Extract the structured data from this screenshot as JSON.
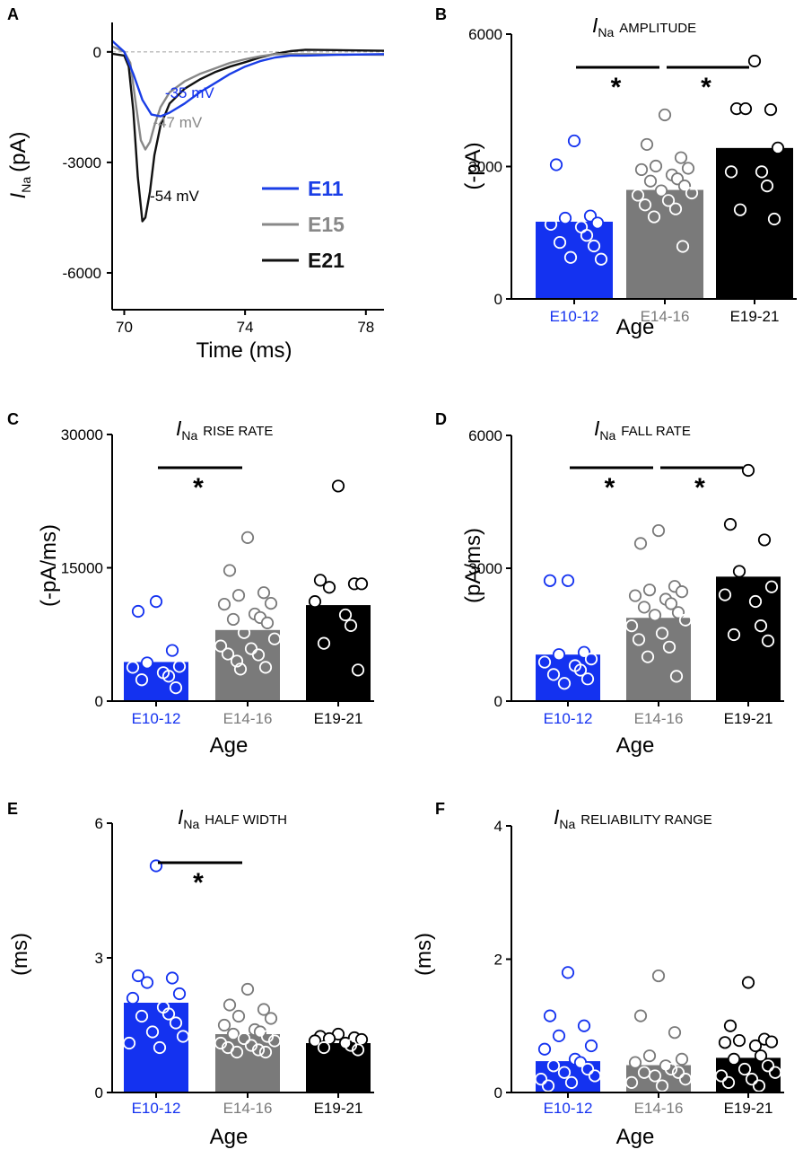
{
  "colors": {
    "e10_12": "#1432f0",
    "e14_16": "#7a7a7a",
    "e19_21": "#000000",
    "e11_trace": "#1a3ee6",
    "e15_trace": "#888888",
    "e21_trace": "#111111",
    "baseline": "#aaaaaa"
  },
  "chart_data": [
    {
      "panel": "A",
      "type": "line",
      "xlabel": "Time (ms)",
      "ylabel_main": "I",
      "ylabel_sub": "Na",
      "ylabel_unit": "(pA)",
      "xlim": [
        69.6,
        78.6
      ],
      "ylim": [
        -7000,
        800
      ],
      "xticks": [
        70,
        74,
        78
      ],
      "yticks": [
        0,
        -3000,
        -6000
      ],
      "legend": [
        "E11",
        "E15",
        "E21"
      ],
      "series": [
        {
          "name": "E11",
          "color_key": "e11_trace",
          "label": "-35 mV",
          "x": [
            69.6,
            70.0,
            70.3,
            70.6,
            70.9,
            71.2,
            71.5,
            72.0,
            72.5,
            73.0,
            73.5,
            74.0,
            74.5,
            75.0,
            75.5,
            76.0,
            77.0,
            78.6
          ],
          "y": [
            300,
            0,
            -600,
            -1300,
            -1700,
            -1750,
            -1650,
            -1400,
            -1100,
            -850,
            -600,
            -400,
            -250,
            -150,
            -100,
            -100,
            -80,
            -60
          ]
        },
        {
          "name": "E15",
          "color_key": "e15_trace",
          "label": "-47 mV",
          "x": [
            69.6,
            70.0,
            70.2,
            70.4,
            70.55,
            70.7,
            70.85,
            71.0,
            71.2,
            71.5,
            72.0,
            72.5,
            73.0,
            73.5,
            74.0,
            74.5,
            75.0,
            76.0,
            78.6
          ],
          "y": [
            150,
            0,
            -300,
            -1500,
            -2400,
            -2650,
            -2450,
            -2000,
            -1500,
            -1100,
            -800,
            -600,
            -450,
            -300,
            -200,
            -120,
            -60,
            -60,
            -80
          ]
        },
        {
          "name": "E21",
          "color_key": "e21_trace",
          "label": "-54 mV",
          "x": [
            69.6,
            70.0,
            70.15,
            70.3,
            70.45,
            70.6,
            70.7,
            70.85,
            71.0,
            71.2,
            71.5,
            72.0,
            72.5,
            73.0,
            73.5,
            74.0,
            74.5,
            75.0,
            75.5,
            76.0,
            77.0,
            78.6
          ],
          "y": [
            -50,
            -100,
            -400,
            -1600,
            -3400,
            -4600,
            -4500,
            -3800,
            -2800,
            -2000,
            -1400,
            -1000,
            -750,
            -550,
            -400,
            -280,
            -150,
            -50,
            20,
            60,
            50,
            30
          ]
        }
      ]
    },
    {
      "panel": "B",
      "type": "bar",
      "title_main": "I",
      "title_sub": "Na",
      "title_rest": "AMPLITUDE",
      "ylabel": "(-pA)",
      "xlabel": "Age",
      "ylim": [
        0,
        6000
      ],
      "yticks": [
        0,
        3000,
        6000
      ],
      "categories": [
        "E10-12",
        "E14-16",
        "E19-21"
      ],
      "values": [
        1750,
        2470,
        3420
      ],
      "points": [
        [
          3580,
          3040,
          1880,
          1830,
          1720,
          1690,
          1630,
          1440,
          1280,
          1200,
          940,
          900
        ],
        [
          4170,
          3500,
          3200,
          3010,
          2960,
          2930,
          2810,
          2720,
          2670,
          2560,
          2450,
          2400,
          2350,
          2230,
          2130,
          2040,
          1860,
          1190
        ],
        [
          5390,
          4310,
          4290,
          4310,
          3420,
          2880,
          2880,
          2560,
          2020,
          1810
        ]
      ],
      "sig": [
        [
          "E10-12",
          "E14-16"
        ],
        [
          "E14-16",
          "E19-21"
        ]
      ],
      "star": "*"
    },
    {
      "panel": "C",
      "type": "bar",
      "title_main": "I",
      "title_sub": "Na",
      "title_rest": "RISE RATE",
      "ylabel": "(-pA/ms)",
      "xlabel": "Age",
      "ylim": [
        0,
        30000
      ],
      "yticks": [
        0,
        15000,
        30000
      ],
      "categories": [
        "E10-12",
        "E14-16",
        "E19-21"
      ],
      "values": [
        4400,
        8000,
        10800
      ],
      "points": [
        [
          11200,
          10100,
          5700,
          4300,
          3900,
          3800,
          3200,
          2800,
          2400,
          1500
        ],
        [
          18400,
          14700,
          12200,
          11900,
          11000,
          10900,
          9800,
          9400,
          9200,
          8800,
          7700,
          7000,
          6200,
          5900,
          5300,
          5200,
          4500,
          3800,
          3600
        ],
        [
          24200,
          13600,
          13200,
          12800,
          13200,
          11200,
          9700,
          8500,
          6500,
          3500
        ]
      ],
      "sig": [
        [
          "E10-12",
          "E14-16"
        ]
      ],
      "star": "*"
    },
    {
      "panel": "D",
      "type": "bar",
      "title_main": "I",
      "title_sub": "Na",
      "title_rest": "FALL RATE",
      "ylabel": "(pA/ms)",
      "xlabel": "Age",
      "ylim": [
        0,
        6000
      ],
      "yticks": [
        0,
        3000,
        6000
      ],
      "categories": [
        "E10-12",
        "E14-16",
        "E19-21"
      ],
      "values": [
        1050,
        1880,
        2810
      ],
      "points": [
        [
          2720,
          2720,
          1100,
          1050,
          950,
          880,
          800,
          700,
          600,
          500,
          400
        ],
        [
          3850,
          3560,
          2590,
          2510,
          2470,
          2380,
          2300,
          2200,
          2120,
          2000,
          1940,
          1830,
          1700,
          1530,
          1390,
          1220,
          1000,
          560
        ],
        [
          5210,
          3990,
          3640,
          2930,
          2580,
          2400,
          2250,
          1700,
          1500,
          1360
        ]
      ],
      "sig": [
        [
          "E10-12",
          "E14-16"
        ],
        [
          "E14-16",
          "E19-21"
        ]
      ],
      "star": "*"
    },
    {
      "panel": "E",
      "type": "bar",
      "title_main": "I",
      "title_sub": "Na",
      "title_rest": "HALF WIDTH",
      "ylabel": "(ms)",
      "xlabel": "Age",
      "ylim": [
        0,
        6
      ],
      "yticks": [
        0,
        3,
        6
      ],
      "categories": [
        "E10-12",
        "E14-16",
        "E19-21"
      ],
      "values": [
        2.0,
        1.3,
        1.1
      ],
      "points": [
        [
          5.05,
          2.6,
          2.55,
          2.45,
          2.2,
          2.1,
          1.9,
          1.75,
          1.7,
          1.55,
          1.35,
          1.25,
          1.1,
          1.0
        ],
        [
          2.3,
          1.95,
          1.85,
          1.7,
          1.65,
          1.5,
          1.4,
          1.35,
          1.3,
          1.25,
          1.2,
          1.15,
          1.1,
          1.05,
          1.0,
          0.95,
          0.9,
          0.9
        ],
        [
          1.3,
          1.25,
          1.22,
          1.2,
          1.18,
          1.15,
          1.1,
          1.05,
          1.0,
          0.95
        ]
      ],
      "sig": [
        [
          "E10-12",
          "E14-16"
        ]
      ],
      "star": "*"
    },
    {
      "panel": "F",
      "type": "bar",
      "title_main": "I",
      "title_sub": "Na",
      "title_rest": "RELIABILITY RANGE",
      "ylabel": "(ms)",
      "xlabel": "Age",
      "ylim": [
        0,
        4
      ],
      "yticks": [
        0,
        2,
        4
      ],
      "categories": [
        "E10-12",
        "E14-16",
        "E19-21"
      ],
      "values": [
        0.47,
        0.41,
        0.52
      ],
      "points": [
        [
          1.8,
          1.15,
          1.0,
          0.85,
          0.7,
          0.65,
          0.5,
          0.45,
          0.4,
          0.35,
          0.3,
          0.25,
          0.2,
          0.15,
          0.1
        ],
        [
          1.75,
          1.15,
          0.9,
          0.55,
          0.5,
          0.45,
          0.4,
          0.35,
          0.3,
          0.3,
          0.25,
          0.2,
          0.15,
          0.1
        ],
        [
          1.65,
          1.0,
          0.8,
          0.78,
          0.76,
          0.75,
          0.7,
          0.55,
          0.5,
          0.4,
          0.35,
          0.3,
          0.25,
          0.2,
          0.15,
          0.1
        ]
      ],
      "sig": [],
      "star": "*"
    }
  ]
}
